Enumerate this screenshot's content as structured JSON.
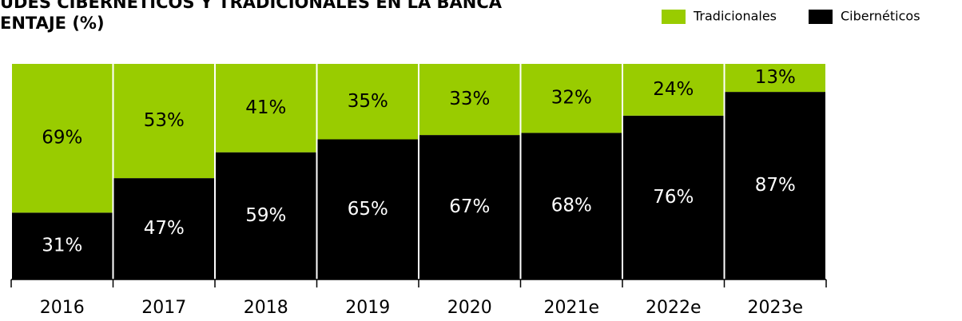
{
  "chart_data": {
    "type": "stacked-bar",
    "title": "UDES CIBERNÉTICOS Y TRADICIONALES EN LA BANCA",
    "subtitle": "ENTAJE (%)",
    "categories": [
      "2016",
      "2017",
      "2018",
      "2019",
      "2020",
      "2021e",
      "2022e",
      "2023e"
    ],
    "series": [
      {
        "name": "Tradicionales",
        "color": "#99cc00",
        "label_color": "#000000",
        "values": [
          69,
          53,
          41,
          35,
          33,
          32,
          24,
          13
        ],
        "value_labels": [
          "69%",
          "53%",
          "41%",
          "35%",
          "33%",
          "32%",
          "24%",
          "13%"
        ]
      },
      {
        "name": "Cibernéticos",
        "color": "#000000",
        "label_color": "#ffffff",
        "values": [
          31,
          47,
          59,
          65,
          67,
          68,
          76,
          87
        ],
        "value_labels": [
          "31%",
          "47%",
          "59%",
          "65%",
          "67%",
          "68%",
          "76%",
          "87%"
        ]
      }
    ],
    "ylim": [
      0,
      100
    ]
  }
}
